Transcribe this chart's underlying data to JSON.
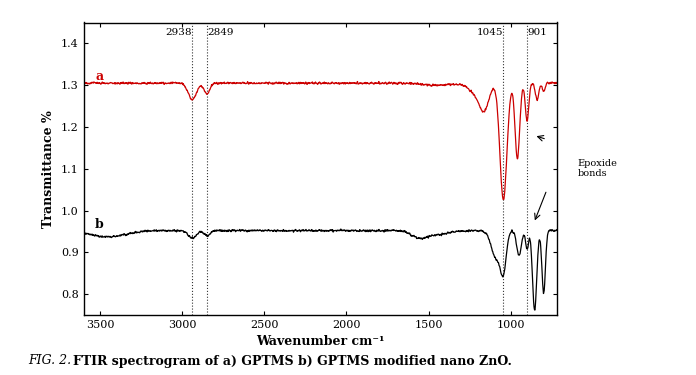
{
  "xlabel": "Wavenumber cm⁻¹",
  "ylabel": "Transmittance %",
  "xlim": [
    3600,
    720
  ],
  "ylim": [
    0.75,
    1.45
  ],
  "yticks": [
    0.8,
    0.9,
    1.0,
    1.1,
    1.2,
    1.3,
    1.4
  ],
  "xticks": [
    3500,
    3000,
    2500,
    2000,
    1500,
    1000
  ],
  "vlines": [
    2938,
    2849,
    1045,
    901
  ],
  "vline_labels": [
    "2938",
    "2849",
    "1045",
    "901"
  ],
  "curve_a_color": "#cc0000",
  "curve_b_color": "#000000",
  "label_a": "a",
  "label_b": "b",
  "annotation_text": "Epoxide\nbonds",
  "caption_normal": "FIG. 2. ",
  "caption_bold": "FTIR spectrogram of a) GPTMS b) GPTMS modified nano ZnO.",
  "background_color": "#ffffff"
}
